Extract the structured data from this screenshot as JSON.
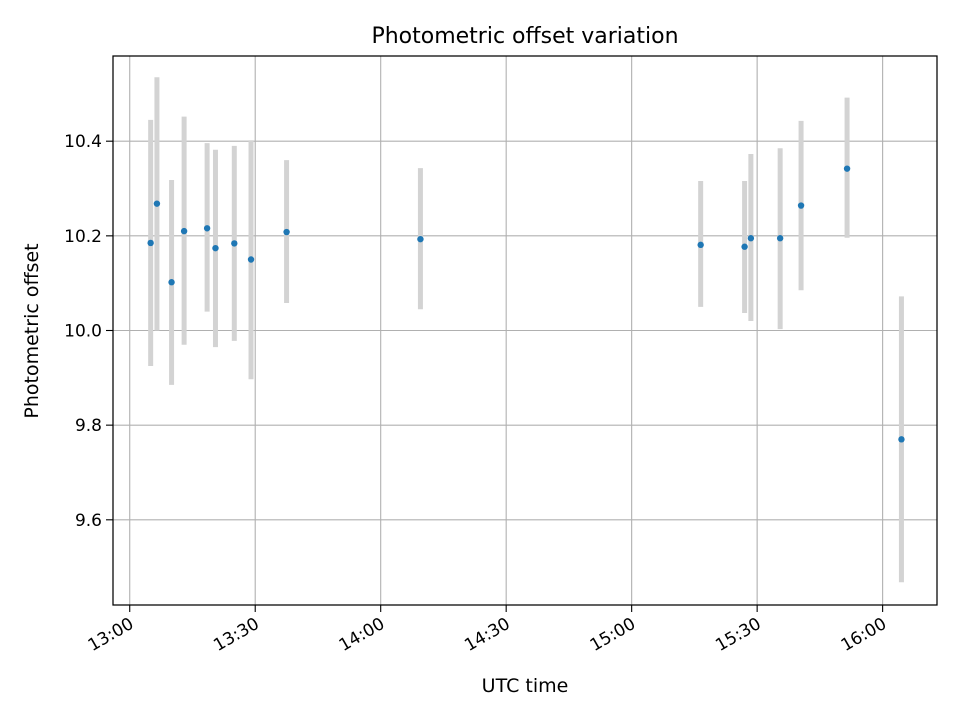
{
  "chart_data": {
    "type": "scatter",
    "title": "Photometric offset variation",
    "xlabel": "UTC time",
    "ylabel": "Photometric offset",
    "x_ticks": [
      "13:00",
      "13:30",
      "14:00",
      "14:30",
      "15:00",
      "15:30",
      "16:00"
    ],
    "y_ticks": [
      "9.6",
      "9.8",
      "10.0",
      "10.2",
      "10.4"
    ],
    "xlim": [
      "12:56",
      "16:13"
    ],
    "ylim": [
      9.42,
      10.58
    ],
    "grid": true,
    "colors": {
      "points": "#1f77b4",
      "errorbars": "#d3d3d3",
      "grid": "#b0b0b0"
    },
    "points": [
      {
        "x": "13:05",
        "y": 10.185,
        "low": 9.925,
        "high": 10.445
      },
      {
        "x": "13:06.5",
        "y": 10.268,
        "low": 10.0,
        "high": 10.535
      },
      {
        "x": "13:10",
        "y": 10.102,
        "low": 9.885,
        "high": 10.318
      },
      {
        "x": "13:13",
        "y": 10.21,
        "low": 9.97,
        "high": 10.452
      },
      {
        "x": "13:18.5",
        "y": 10.216,
        "low": 10.04,
        "high": 10.396
      },
      {
        "x": "13:20.5",
        "y": 10.174,
        "low": 9.965,
        "high": 10.382
      },
      {
        "x": "13:25",
        "y": 10.184,
        "low": 9.978,
        "high": 10.39
      },
      {
        "x": "13:29",
        "y": 10.15,
        "low": 9.897,
        "high": 10.402
      },
      {
        "x": "13:37.5",
        "y": 10.208,
        "low": 10.058,
        "high": 10.36
      },
      {
        "x": "14:09.5",
        "y": 10.193,
        "low": 10.045,
        "high": 10.343
      },
      {
        "x": "15:16.5",
        "y": 10.181,
        "low": 10.05,
        "high": 10.316
      },
      {
        "x": "15:27",
        "y": 10.177,
        "low": 10.037,
        "high": 10.316
      },
      {
        "x": "15:28.5",
        "y": 10.195,
        "low": 10.02,
        "high": 10.373
      },
      {
        "x": "15:35.5",
        "y": 10.195,
        "low": 10.003,
        "high": 10.385
      },
      {
        "x": "15:40.5",
        "y": 10.264,
        "low": 10.085,
        "high": 10.443
      },
      {
        "x": "15:51.5",
        "y": 10.342,
        "low": 10.196,
        "high": 10.492
      },
      {
        "x": "16:04.5",
        "y": 9.77,
        "low": 9.468,
        "high": 10.072
      }
    ]
  }
}
